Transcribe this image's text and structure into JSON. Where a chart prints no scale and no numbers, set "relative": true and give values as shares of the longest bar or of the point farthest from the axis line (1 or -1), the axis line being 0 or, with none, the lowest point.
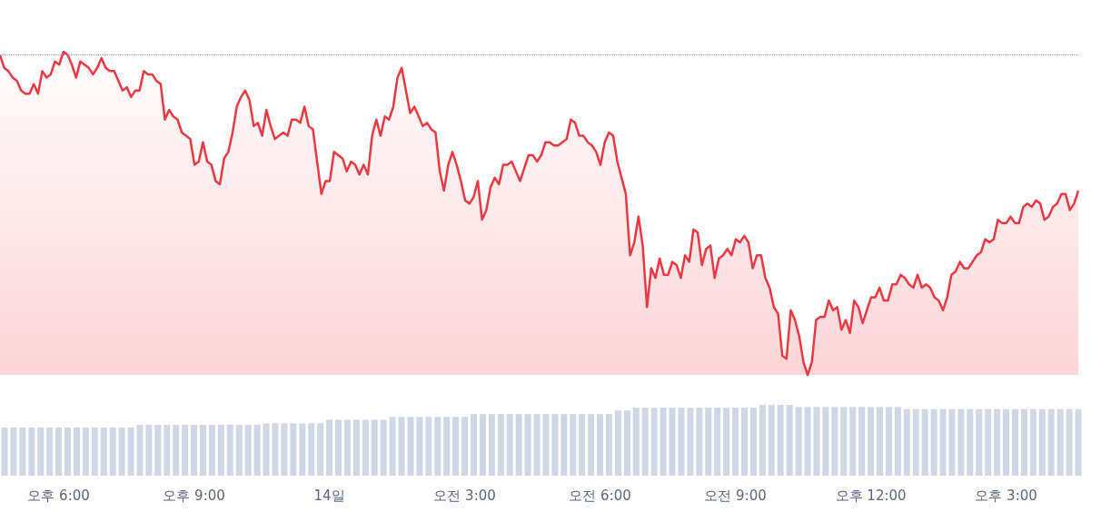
{
  "chart_data": [
    {
      "type": "area",
      "relative": true,
      "color": "#ea3943",
      "tick_labels": false,
      "ref_lines": [
        {
          "axis": "y",
          "value": 0.99,
          "color": "#9aa0a6",
          "line_style": "dotted"
        }
      ],
      "categories": [
        null,
        null,
        null,
        null,
        null,
        null,
        null,
        null,
        null,
        null,
        null,
        null,
        null,
        null,
        null,
        null,
        null,
        null,
        null,
        null,
        null,
        null,
        null,
        null,
        null,
        null,
        null,
        null,
        null,
        null,
        null,
        null,
        null,
        null,
        null,
        null,
        null,
        null,
        null,
        null,
        null,
        null,
        null,
        null,
        null,
        null,
        null,
        null,
        null,
        null,
        null,
        null,
        null,
        null,
        null,
        null,
        null,
        null,
        null,
        null,
        null,
        null,
        null,
        null,
        null,
        null,
        null,
        null,
        null,
        null,
        null,
        null,
        null,
        null,
        null,
        null,
        null,
        null,
        null,
        null,
        null,
        null,
        null,
        null,
        null,
        null,
        null,
        null,
        null,
        null,
        null,
        null,
        null,
        null,
        null,
        null,
        null,
        null,
        null,
        null,
        null,
        null,
        null,
        null,
        null,
        null,
        null,
        null,
        null,
        null,
        null,
        null,
        null,
        null,
        null,
        null,
        null,
        null,
        null,
        null,
        null,
        null,
        null,
        null,
        null,
        null,
        null,
        null,
        null,
        null,
        null,
        null,
        null,
        null,
        null,
        null,
        null,
        null,
        null,
        null,
        null,
        null,
        null,
        null,
        null,
        null,
        null,
        null,
        null,
        null,
        null,
        null,
        null,
        null,
        null,
        null,
        null,
        null,
        null,
        null,
        null,
        null,
        null,
        null,
        null,
        null,
        null,
        null,
        null,
        null,
        null,
        null,
        null,
        null,
        null,
        null,
        null,
        null,
        null,
        null,
        null,
        null,
        null,
        null,
        null,
        null,
        null,
        null,
        null,
        null,
        null,
        null,
        null,
        null,
        null,
        null,
        null,
        null,
        null,
        null,
        null,
        null,
        null,
        null,
        null,
        null,
        null,
        null,
        null,
        null,
        null,
        null,
        null,
        null,
        null,
        null,
        null,
        null,
        null,
        null,
        null,
        null,
        null,
        null,
        null,
        null,
        null,
        null,
        null,
        null,
        null,
        null,
        null,
        null,
        null,
        null,
        null,
        null,
        null,
        null,
        null,
        null,
        null,
        null,
        null,
        null,
        null,
        null,
        null,
        null,
        null,
        null,
        null,
        null,
        null,
        null
      ],
      "values": [
        0.99,
        0.95,
        0.94,
        0.92,
        0.91,
        0.88,
        0.87,
        0.87,
        0.9,
        0.87,
        0.94,
        0.92,
        0.93,
        0.97,
        0.96,
        1,
        0.99,
        0.96,
        0.92,
        0.97,
        0.96,
        0.95,
        0.93,
        0.95,
        0.98,
        0.95,
        0.94,
        0.94,
        0.91,
        0.88,
        0.89,
        0.86,
        0.88,
        0.88,
        0.94,
        0.93,
        0.93,
        0.91,
        0.9,
        0.79,
        0.82,
        0.8,
        0.79,
        0.75,
        0.74,
        0.73,
        0.65,
        0.66,
        0.72,
        0.66,
        0.65,
        0.6,
        0.59,
        0.67,
        0.69,
        0.75,
        0.83,
        0.86,
        0.88,
        0.85,
        0.77,
        0.78,
        0.74,
        0.82,
        0.77,
        0.73,
        0.74,
        0.75,
        0.74,
        0.79,
        0.79,
        0.78,
        0.83,
        0.77,
        0.76,
        0.66,
        0.56,
        0.6,
        0.6,
        0.69,
        0.68,
        0.67,
        0.63,
        0.66,
        0.65,
        0.62,
        0.65,
        0.62,
        0.74,
        0.79,
        0.74,
        0.8,
        0.79,
        0.83,
        0.92,
        0.95,
        0.88,
        0.81,
        0.83,
        0.8,
        0.77,
        0.78,
        0.76,
        0.75,
        0.63,
        0.57,
        0.65,
        0.69,
        0.65,
        0.6,
        0.54,
        0.53,
        0.55,
        0.6,
        0.48,
        0.51,
        0.58,
        0.61,
        0.59,
        0.65,
        0.65,
        0.66,
        0.63,
        0.6,
        0.64,
        0.68,
        0.68,
        0.66,
        0.68,
        0.72,
        0.72,
        0.71,
        0.71,
        0.72,
        0.73,
        0.79,
        0.78,
        0.74,
        0.74,
        0.72,
        0.71,
        0.69,
        0.65,
        0.72,
        0.75,
        0.74,
        0.66,
        0.61,
        0.56,
        0.37,
        0.41,
        0.49,
        0.4,
        0.21,
        0.33,
        0.3,
        0.36,
        0.31,
        0.31,
        0.35,
        0.34,
        0.3,
        0.37,
        0.35,
        0.45,
        0.44,
        0.34,
        0.39,
        0.4,
        0.3,
        0.36,
        0.37,
        0.39,
        0.37,
        0.42,
        0.41,
        0.43,
        0.41,
        0.33,
        0.37,
        0.37,
        0.3,
        0.27,
        0.21,
        0.19,
        0.06,
        0.05,
        0.2,
        0.17,
        0.12,
        0.04,
        0,
        0.04,
        0.17,
        0.18,
        0.18,
        0.23,
        0.2,
        0.21,
        0.14,
        0.17,
        0.13,
        0.23,
        0.21,
        0.16,
        0.2,
        0.24,
        0.24,
        0.27,
        0.23,
        0.23,
        0.28,
        0.28,
        0.31,
        0.3,
        0.28,
        0.27,
        0.31,
        0.27,
        0.28,
        0.27,
        0.24,
        0.23,
        0.2,
        0.24,
        0.31,
        0.32,
        0.35,
        0.33,
        0.33,
        0.35,
        0.37,
        0.38,
        0.42,
        0.41,
        0.42,
        0.48,
        0.47,
        0.47,
        0.49,
        0.47,
        0.47,
        0.52,
        0.53,
        0.52,
        0.54,
        0.53,
        0.48,
        0.49,
        0.52,
        0.53,
        0.56,
        0.56,
        0.51,
        0.53,
        0.57
      ]
    },
    {
      "type": "bar",
      "relative": true,
      "color": "#cfd6e4",
      "tick_labels": "x",
      "categories": [
        null,
        null,
        null,
        null,
        null,
        null,
        "오후 6:00",
        null,
        null,
        null,
        null,
        null,
        null,
        null,
        null,
        null,
        null,
        null,
        null,
        null,
        null,
        "오후 9:00",
        null,
        null,
        null,
        null,
        null,
        null,
        null,
        null,
        null,
        null,
        null,
        null,
        null,
        null,
        "14일",
        null,
        null,
        null,
        null,
        null,
        null,
        null,
        null,
        null,
        null,
        null,
        null,
        null,
        null,
        "오전 3:00",
        null,
        null,
        null,
        null,
        null,
        null,
        null,
        null,
        null,
        null,
        null,
        null,
        null,
        null,
        "오전 6:00",
        null,
        null,
        null,
        null,
        null,
        null,
        null,
        null,
        null,
        null,
        null,
        null,
        null,
        null,
        "오전 9:00",
        null,
        null,
        null,
        null,
        null,
        null,
        null,
        null,
        null,
        null,
        null,
        null,
        null,
        null,
        "오후 12:00",
        null,
        null,
        null,
        null,
        null,
        null,
        null,
        null,
        null,
        null,
        null,
        null,
        null,
        null,
        "오후 3:00",
        null,
        null,
        null,
        null,
        null,
        null,
        null,
        null
      ],
      "values": [
        0.68,
        0.68,
        0.68,
        0.68,
        0.68,
        0.68,
        0.68,
        0.68,
        0.68,
        0.68,
        0.68,
        0.68,
        0.68,
        0.68,
        0.68,
        0.72,
        0.72,
        0.72,
        0.72,
        0.72,
        0.72,
        0.72,
        0.72,
        0.72,
        0.72,
        0.72,
        0.72,
        0.72,
        0.72,
        0.74,
        0.74,
        0.74,
        0.74,
        0.74,
        0.74,
        0.74,
        0.79,
        0.79,
        0.79,
        0.79,
        0.79,
        0.79,
        0.79,
        0.83,
        0.83,
        0.83,
        0.83,
        0.83,
        0.83,
        0.83,
        0.83,
        0.83,
        0.87,
        0.87,
        0.87,
        0.87,
        0.87,
        0.87,
        0.87,
        0.87,
        0.87,
        0.87,
        0.87,
        0.87,
        0.87,
        0.87,
        0.87,
        0.87,
        0.92,
        0.92,
        0.96,
        0.96,
        0.96,
        0.96,
        0.96,
        0.96,
        0.96,
        0.96,
        0.96,
        0.96,
        0.96,
        0.96,
        0.96,
        0.96,
        1,
        1,
        1,
        1,
        0.97,
        0.97,
        0.97,
        0.97,
        0.97,
        0.97,
        0.97,
        0.97,
        0.97,
        0.97,
        0.97,
        0.97,
        0.94,
        0.94,
        0.94,
        0.94,
        0.94,
        0.94,
        0.94,
        0.94,
        0.94,
        0.94,
        0.94,
        0.94,
        0.94,
        0.94,
        0.94,
        0.94,
        0.94,
        0.94,
        0.94,
        0.94
      ]
    }
  ]
}
